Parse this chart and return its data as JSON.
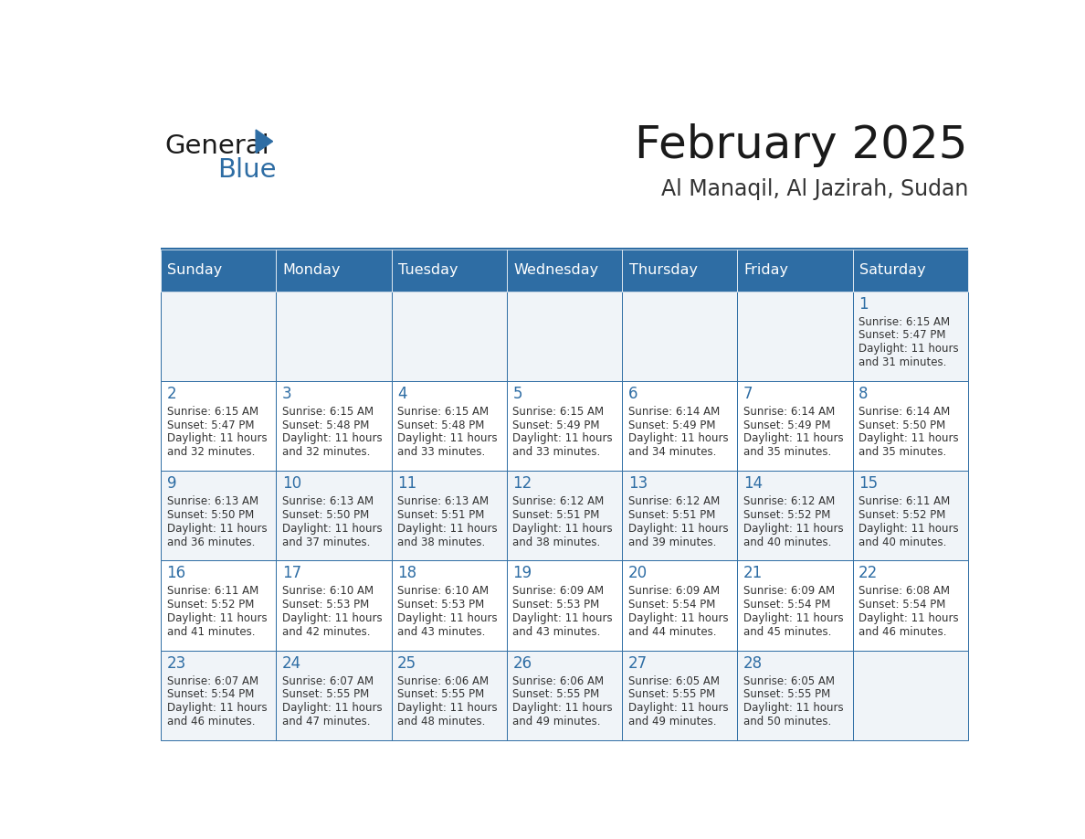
{
  "title": "February 2025",
  "subtitle": "Al Manaqil, Al Jazirah, Sudan",
  "header_bg": "#2E6DA4",
  "header_text_color": "#FFFFFF",
  "day_names": [
    "Sunday",
    "Monday",
    "Tuesday",
    "Wednesday",
    "Thursday",
    "Friday",
    "Saturday"
  ],
  "cell_bg_odd": "#F0F4F8",
  "cell_bg_even": "#FFFFFF",
  "grid_line_color": "#2E6DA4",
  "date_color": "#2E6DA4",
  "text_color": "#333333",
  "logo_color": "#2E6DA4",
  "calendar_data": [
    [
      null,
      null,
      null,
      null,
      null,
      null,
      {
        "day": 1,
        "sunrise": "6:15 AM",
        "sunset": "5:47 PM",
        "daylight": "11 hours and 31 minutes."
      }
    ],
    [
      {
        "day": 2,
        "sunrise": "6:15 AM",
        "sunset": "5:47 PM",
        "daylight": "11 hours and 32 minutes."
      },
      {
        "day": 3,
        "sunrise": "6:15 AM",
        "sunset": "5:48 PM",
        "daylight": "11 hours and 32 minutes."
      },
      {
        "day": 4,
        "sunrise": "6:15 AM",
        "sunset": "5:48 PM",
        "daylight": "11 hours and 33 minutes."
      },
      {
        "day": 5,
        "sunrise": "6:15 AM",
        "sunset": "5:49 PM",
        "daylight": "11 hours and 33 minutes."
      },
      {
        "day": 6,
        "sunrise": "6:14 AM",
        "sunset": "5:49 PM",
        "daylight": "11 hours and 34 minutes."
      },
      {
        "day": 7,
        "sunrise": "6:14 AM",
        "sunset": "5:49 PM",
        "daylight": "11 hours and 35 minutes."
      },
      {
        "day": 8,
        "sunrise": "6:14 AM",
        "sunset": "5:50 PM",
        "daylight": "11 hours and 35 minutes."
      }
    ],
    [
      {
        "day": 9,
        "sunrise": "6:13 AM",
        "sunset": "5:50 PM",
        "daylight": "11 hours and 36 minutes."
      },
      {
        "day": 10,
        "sunrise": "6:13 AM",
        "sunset": "5:50 PM",
        "daylight": "11 hours and 37 minutes."
      },
      {
        "day": 11,
        "sunrise": "6:13 AM",
        "sunset": "5:51 PM",
        "daylight": "11 hours and 38 minutes."
      },
      {
        "day": 12,
        "sunrise": "6:12 AM",
        "sunset": "5:51 PM",
        "daylight": "11 hours and 38 minutes."
      },
      {
        "day": 13,
        "sunrise": "6:12 AM",
        "sunset": "5:51 PM",
        "daylight": "11 hours and 39 minutes."
      },
      {
        "day": 14,
        "sunrise": "6:12 AM",
        "sunset": "5:52 PM",
        "daylight": "11 hours and 40 minutes."
      },
      {
        "day": 15,
        "sunrise": "6:11 AM",
        "sunset": "5:52 PM",
        "daylight": "11 hours and 40 minutes."
      }
    ],
    [
      {
        "day": 16,
        "sunrise": "6:11 AM",
        "sunset": "5:52 PM",
        "daylight": "11 hours and 41 minutes."
      },
      {
        "day": 17,
        "sunrise": "6:10 AM",
        "sunset": "5:53 PM",
        "daylight": "11 hours and 42 minutes."
      },
      {
        "day": 18,
        "sunrise": "6:10 AM",
        "sunset": "5:53 PM",
        "daylight": "11 hours and 43 minutes."
      },
      {
        "day": 19,
        "sunrise": "6:09 AM",
        "sunset": "5:53 PM",
        "daylight": "11 hours and 43 minutes."
      },
      {
        "day": 20,
        "sunrise": "6:09 AM",
        "sunset": "5:54 PM",
        "daylight": "11 hours and 44 minutes."
      },
      {
        "day": 21,
        "sunrise": "6:09 AM",
        "sunset": "5:54 PM",
        "daylight": "11 hours and 45 minutes."
      },
      {
        "day": 22,
        "sunrise": "6:08 AM",
        "sunset": "5:54 PM",
        "daylight": "11 hours and 46 minutes."
      }
    ],
    [
      {
        "day": 23,
        "sunrise": "6:07 AM",
        "sunset": "5:54 PM",
        "daylight": "11 hours and 46 minutes."
      },
      {
        "day": 24,
        "sunrise": "6:07 AM",
        "sunset": "5:55 PM",
        "daylight": "11 hours and 47 minutes."
      },
      {
        "day": 25,
        "sunrise": "6:06 AM",
        "sunset": "5:55 PM",
        "daylight": "11 hours and 48 minutes."
      },
      {
        "day": 26,
        "sunrise": "6:06 AM",
        "sunset": "5:55 PM",
        "daylight": "11 hours and 49 minutes."
      },
      {
        "day": 27,
        "sunrise": "6:05 AM",
        "sunset": "5:55 PM",
        "daylight": "11 hours and 49 minutes."
      },
      {
        "day": 28,
        "sunrise": "6:05 AM",
        "sunset": "5:55 PM",
        "daylight": "11 hours and 50 minutes."
      },
      null
    ]
  ]
}
